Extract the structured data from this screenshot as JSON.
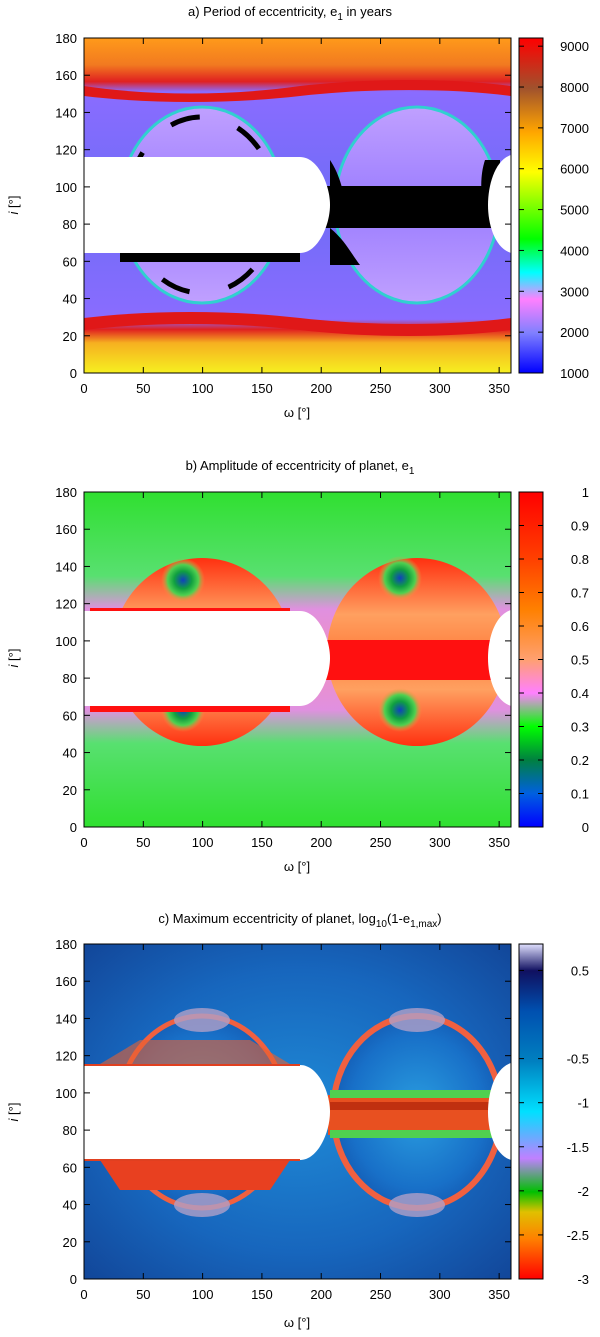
{
  "chart_data": [
    {
      "type": "heatmap",
      "title_main": "a) Period of eccentricity, e",
      "title_sub": "1",
      "title_tail": " in years",
      "xlabel": "ω [°]",
      "ylabel_var": "i",
      "ylabel_unit": " [°]",
      "xlim": [
        0,
        360
      ],
      "ylim": [
        0,
        180
      ],
      "xticks": [
        "0",
        "50",
        "100",
        "150",
        "200",
        "250",
        "300",
        "350"
      ],
      "yticks": [
        "0",
        "20",
        "40",
        "60",
        "80",
        "100",
        "120",
        "140",
        "160",
        "180"
      ],
      "colorbar": {
        "range": [
          1000,
          9200
        ],
        "ticks": [
          "1000",
          "2000",
          "3000",
          "4000",
          "5000",
          "6000",
          "7000",
          "8000",
          "9000"
        ],
        "colors": [
          "#0000ff",
          "#8080ff",
          "#ff80ff",
          "#00ffff",
          "#00ff00",
          "#ffff00",
          "#ffa500",
          "#a0522d",
          "#ff0000"
        ]
      }
    },
    {
      "type": "heatmap",
      "title_main": "b) Amplitude of eccentricity of planet, e",
      "title_sub": "1",
      "title_tail": "",
      "xlabel": "ω [°]",
      "ylabel_var": "i",
      "ylabel_unit": " [°]",
      "xlim": [
        0,
        360
      ],
      "ylim": [
        0,
        180
      ],
      "xticks": [
        "0",
        "50",
        "100",
        "150",
        "200",
        "250",
        "300",
        "350"
      ],
      "yticks": [
        "0",
        "20",
        "40",
        "60",
        "80",
        "100",
        "120",
        "140",
        "160",
        "180"
      ],
      "colorbar": {
        "range": [
          0,
          1
        ],
        "ticks": [
          "0",
          "0.1",
          "0.2",
          "0.3",
          "0.4",
          "0.5",
          "0.6",
          "0.7",
          "0.8",
          "0.9",
          "1"
        ],
        "colors": [
          "#0000ff",
          "#0080ff",
          "#008040",
          "#00ff00",
          "#ff80ff",
          "#ffa070",
          "#ff8000",
          "#ff4000",
          "#ff0000"
        ]
      }
    },
    {
      "type": "heatmap",
      "title_main": "c) Maximum eccentricity of planet, log",
      "title_sub": "10",
      "title_tail": "(1-e",
      "title_sub2": "1,max",
      "title_end": ")",
      "xlabel": "ω [°]",
      "ylabel_var": "i",
      "ylabel_unit": " [°]",
      "xlim": [
        0,
        360
      ],
      "ylim": [
        0,
        180
      ],
      "xticks": [
        "0",
        "50",
        "100",
        "150",
        "200",
        "250",
        "300",
        "350"
      ],
      "yticks": [
        "0",
        "20",
        "40",
        "60",
        "80",
        "100",
        "120",
        "140",
        "160",
        "180"
      ],
      "colorbar": {
        "range": [
          -3,
          0.8
        ],
        "ticks": [
          "-3",
          "-2.5",
          "-2",
          "-1.5",
          "-1",
          "-0.5",
          "0.5"
        ],
        "colors": [
          "#ff0000",
          "#ff8000",
          "#00c000",
          "#c080ff",
          "#00e0ff",
          "#0080c0",
          "#0050b0",
          "#101060",
          "#e0e0ff"
        ]
      }
    }
  ]
}
